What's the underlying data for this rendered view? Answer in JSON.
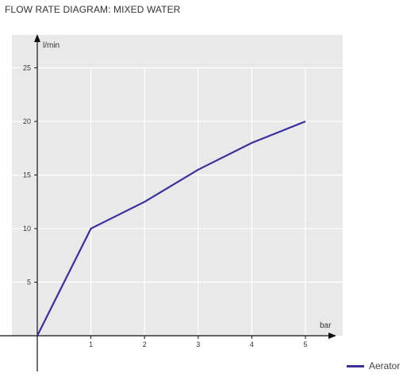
{
  "chart_data": {
    "type": "line",
    "title": "FLOW RATE DIAGRAM: MIXED WATER",
    "xlabel": "bar",
    "ylabel": "l/min",
    "x": [
      0,
      1,
      2,
      3,
      4,
      5
    ],
    "xticks": [
      "1",
      "2",
      "3",
      "4",
      "5"
    ],
    "yticks": [
      "5",
      "10",
      "15",
      "20",
      "25"
    ],
    "xlim": [
      0,
      5
    ],
    "ylim": [
      0,
      25
    ],
    "grid": true,
    "legend_position": "bottom-right",
    "series": [
      {
        "name": "Aerator",
        "values": [
          0,
          10,
          12.5,
          15.5,
          18,
          20
        ],
        "color": "#3a2fa0"
      }
    ],
    "colors": {
      "plot_background": "#e9e9e9",
      "grid": "#ffffff",
      "axis": "#111111"
    }
  }
}
